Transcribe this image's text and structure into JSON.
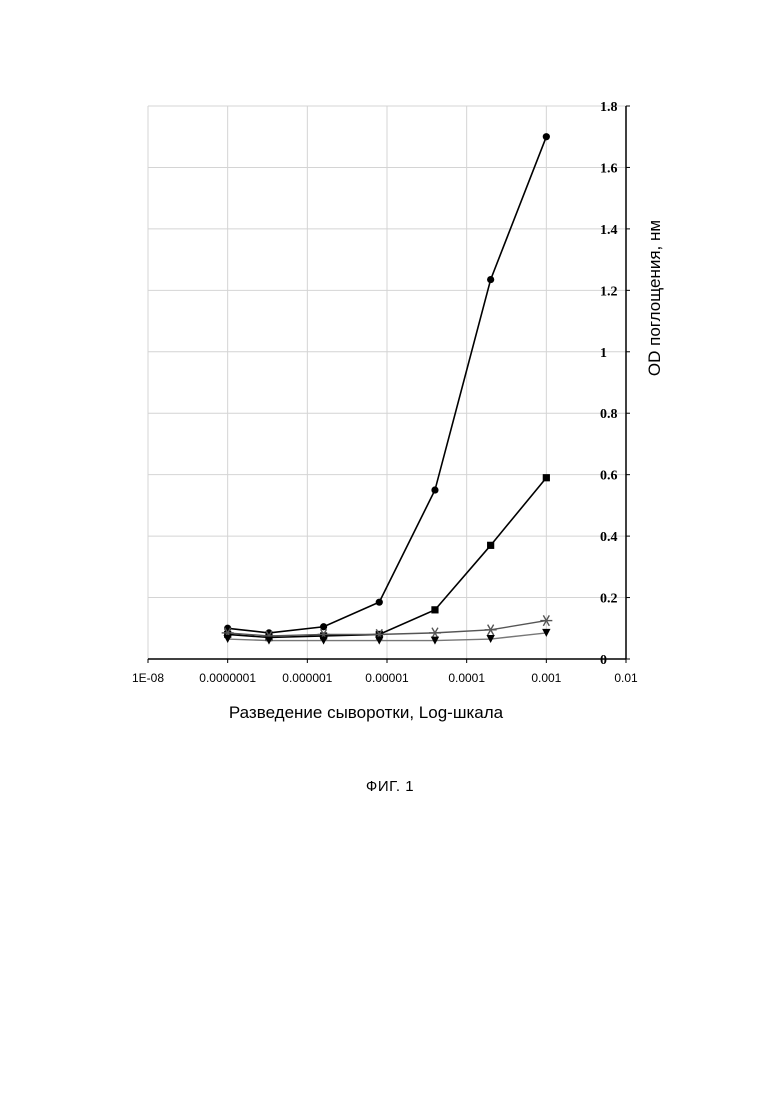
{
  "chart_data": {
    "type": "line",
    "xscale": "log",
    "x": [
      1e-07,
      3.3e-07,
      1.6e-06,
      8e-06,
      4e-05,
      0.0002,
      0.001
    ],
    "x_ticks": [
      1e-08,
      1e-07,
      1e-06,
      1e-05,
      0.0001,
      0.001,
      0.01
    ],
    "x_tick_labels": [
      "1E-08",
      "0.0000001",
      "0.000001",
      "0.00001",
      "0.0001",
      "0.001",
      "0.01"
    ],
    "xlim": [
      1e-08,
      0.01
    ],
    "ylim": [
      0,
      1.8
    ],
    "y_ticks": [
      0,
      0.2,
      0.4,
      0.6,
      0.8,
      1,
      1.2,
      1.4,
      1.6,
      1.8
    ],
    "y_tick_labels": [
      "0",
      "0.2",
      "0.4",
      "0.6",
      "0.8",
      "1",
      "1.2",
      "1.4",
      "1.6",
      "1.8"
    ],
    "xlabel": "Разведение сыворотки, Log-шкала",
    "ylabel": "OD поглощения, нм",
    "y_axis_side": "right",
    "grid": true,
    "series": [
      {
        "marker": "circle",
        "color": "#000000",
        "values": [
          0.1,
          0.085,
          0.105,
          0.185,
          0.55,
          1.235,
          1.7
        ]
      },
      {
        "marker": "square",
        "color": "#000000",
        "values": [
          0.08,
          0.07,
          0.075,
          0.08,
          0.16,
          0.37,
          0.59
        ]
      },
      {
        "marker": "asterisk",
        "color": "#555555",
        "values": [
          0.085,
          0.075,
          0.08,
          0.08,
          0.085,
          0.095,
          0.125
        ]
      },
      {
        "marker": "triangle-down",
        "color": "#777777",
        "values": [
          0.065,
          0.06,
          0.06,
          0.06,
          0.06,
          0.065,
          0.085
        ]
      }
    ]
  },
  "caption": "ФИГ. 1"
}
